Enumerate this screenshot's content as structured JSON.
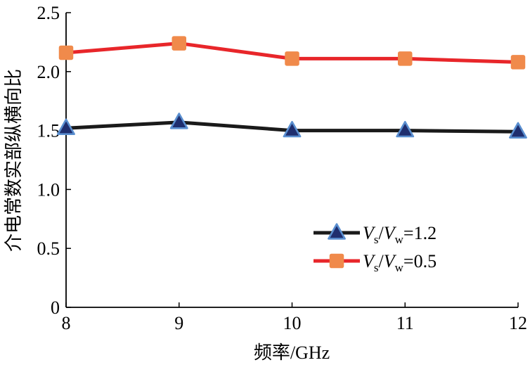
{
  "chart_data": {
    "type": "line",
    "title": "",
    "xlabel": "频率/GHz",
    "ylabel": "介电常数实部纵横向比",
    "x": [
      8,
      9,
      10,
      11,
      12
    ],
    "xlim": [
      8,
      12
    ],
    "ylim": [
      0,
      2.5
    ],
    "x_ticks": [
      "8",
      "9",
      "10",
      "11",
      "12"
    ],
    "y_ticks": [
      "0",
      "0.5",
      "1.0",
      "1.5",
      "2.0",
      "2.5"
    ],
    "y_tick_values": [
      0,
      0.5,
      1.0,
      1.5,
      2.0,
      2.5
    ],
    "grid": false,
    "legend_position": "bottom-right",
    "series": [
      {
        "name": "Vs/Vw=1.2",
        "legend": {
          "v1": "V",
          "sub1": "s",
          "slash": "/",
          "v2": "V",
          "sub2": "w",
          "value": "=1.2"
        },
        "values": [
          1.52,
          1.57,
          1.5,
          1.5,
          1.49
        ],
        "line_color": "#1a1a1a",
        "marker": "triangle",
        "marker_fill": "#1f2e6e",
        "marker_stroke": "#5a8fd0"
      },
      {
        "name": "Vs/Vw=0.5",
        "legend": {
          "v1": "V",
          "sub1": "s",
          "slash": "/",
          "v2": "V",
          "sub2": "w",
          "value": "=0.5"
        },
        "values": [
          2.16,
          2.24,
          2.11,
          2.11,
          2.08
        ],
        "line_color": "#e8262a",
        "marker": "square",
        "marker_fill": "#f08a4b",
        "marker_stroke": "#f08a4b"
      }
    ]
  }
}
